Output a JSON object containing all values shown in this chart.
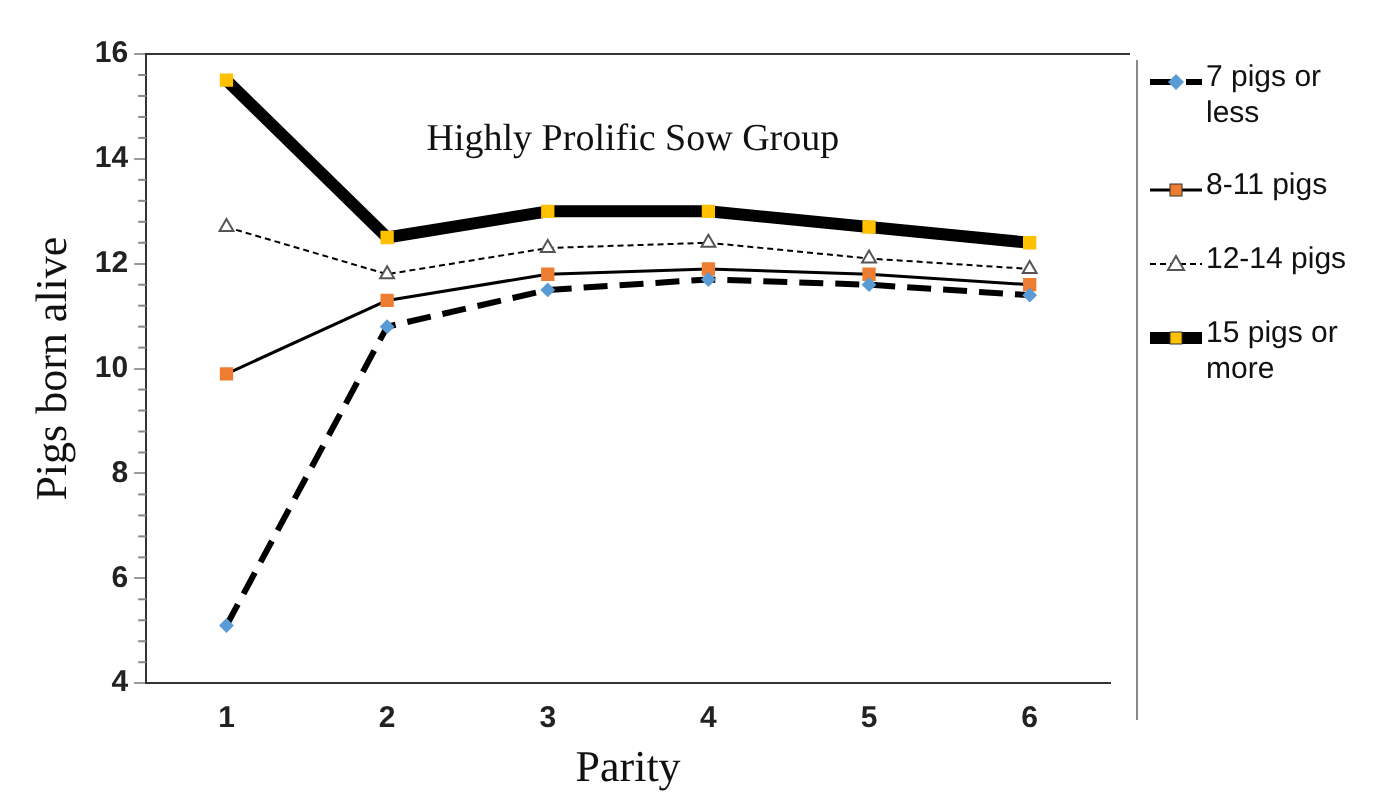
{
  "chart_data": {
    "type": "line",
    "title": "Highly Prolific Sow Group",
    "xlabel": "Parity",
    "ylabel": "Pigs born alive",
    "categories": [
      "1",
      "2",
      "3",
      "4",
      "5",
      "6"
    ],
    "ylim": [
      4,
      16
    ],
    "yticks": [
      4,
      6,
      8,
      10,
      12,
      14,
      16
    ],
    "grid": false,
    "legend": "right",
    "series": [
      {
        "name": "7 pigs or less",
        "color": "#5b9bd5",
        "marker": "diamond",
        "line_style": "dashed",
        "values": [
          5.1,
          10.8,
          11.5,
          11.7,
          11.6,
          11.4
        ]
      },
      {
        "name": "8-11 pigs",
        "color": "#ed7d31",
        "marker": "square",
        "line_style": "solid",
        "values": [
          9.9,
          11.3,
          11.8,
          11.9,
          11.8,
          11.6
        ]
      },
      {
        "name": "12-14 pigs",
        "color": "#ffffff",
        "marker": "triangle",
        "line_style": "dotted",
        "values": [
          12.7,
          11.8,
          12.3,
          12.4,
          12.1,
          11.9
        ]
      },
      {
        "name": "15 pigs or more",
        "color": "#ffc000",
        "marker": "square",
        "line_style": "solid",
        "values": [
          15.5,
          12.5,
          13.0,
          13.0,
          12.7,
          12.4
        ]
      }
    ]
  }
}
